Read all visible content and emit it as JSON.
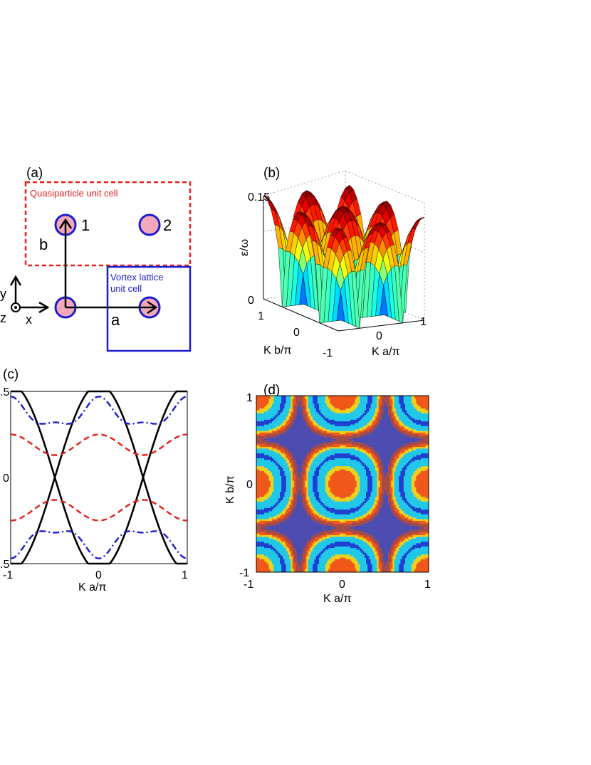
{
  "figure": {
    "panel_a": {
      "tag": "(a)",
      "quasiparticle_label": "Quasiparticle unit cell",
      "vortex_label_line1": "Vortex lattice",
      "vortex_label_line2": "unit cell",
      "site1": "1",
      "site2": "2",
      "vec_a": "a",
      "vec_b": "b",
      "axis_x": "x",
      "axis_y": "y",
      "axis_z": "z",
      "colors": {
        "quasiparticle": "#e8201a",
        "vortex": "#1c1ccf",
        "site_fill": "#f2a8b8",
        "site_stroke": "#1c1ccf"
      }
    },
    "panel_b": {
      "tag": "(b)",
      "zlabel": "ε/ω",
      "z_ticks": [
        "0",
        "0.15"
      ],
      "xlabel": "K a/π",
      "ylabel": "K b/π",
      "x_ticks": [
        "0",
        "1"
      ],
      "y_ticks": [
        "1",
        "0",
        "-1"
      ]
    },
    "panel_c": {
      "tag": "(c)",
      "xlabel": "K a/π",
      "x_ticks": [
        "-1",
        "0",
        "1"
      ],
      "y_ticks": [
        ".5",
        "0",
        ".5"
      ]
    },
    "panel_d": {
      "tag": "(d)",
      "xlabel": "K a/π",
      "ylabel": "K b/π",
      "x_ticks": [
        "-1",
        "0",
        "1"
      ],
      "y_ticks": [
        "1",
        "0",
        "-1"
      ]
    }
  },
  "chart_data": [
    {
      "panel": "b",
      "type": "heatmap",
      "description_kind": "surface",
      "x_range": [
        -1,
        1
      ],
      "y_range": [
        -1,
        1
      ],
      "zlim": [
        0,
        0.15
      ],
      "peaks": [
        [
          -0.5,
          0.5,
          0.15
        ],
        [
          0.5,
          0.5,
          0.15
        ],
        [
          -0.5,
          -0.5,
          0.15
        ],
        [
          0.5,
          -0.5,
          0.15
        ]
      ],
      "colormap": "jet"
    },
    {
      "panel": "c",
      "type": "line",
      "x_range": [
        -1,
        1
      ],
      "ylim": [
        -0.5,
        0.5
      ],
      "series": [
        {
          "style": "solid",
          "color": "#000000",
          "crossings_at_zero": [
            -0.5,
            0.5
          ],
          "max_at": [
            -0.85,
            -0.15,
            0.15,
            0.85
          ]
        },
        {
          "style": "dashed",
          "color": "#e8201a",
          "amplitude_top": 0.25,
          "amplitude_low": 0.13
        },
        {
          "style": "dash-dot",
          "color": "#1c1ccf",
          "amplitude_top": 0.44,
          "amplitude_low": 0.29
        }
      ]
    },
    {
      "panel": "d",
      "type": "heatmap",
      "description_kind": "contour",
      "x_range": [
        -1,
        1
      ],
      "y_range": [
        -1,
        1
      ],
      "colormap": "jet"
    }
  ]
}
